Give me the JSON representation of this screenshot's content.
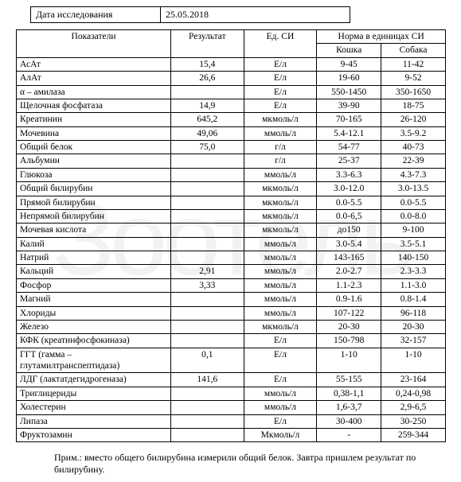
{
  "date_row": {
    "label": "Дата исследования",
    "value": "25.05.2018"
  },
  "headers": {
    "indicator": "Показатели",
    "result": "Результат",
    "unit": "Ед. СИ",
    "norm_group": "Норма в единицах СИ",
    "cat": "Кошка",
    "dog": "Собака"
  },
  "rows": [
    {
      "ind": "АсАт",
      "res": "15,4",
      "unit": "Е/л",
      "cat": "9-45",
      "dog": "11-42"
    },
    {
      "ind": "АлАт",
      "res": "26,6",
      "unit": "Е/л",
      "cat": "19-60",
      "dog": "9-52"
    },
    {
      "ind": "α – амилаза",
      "res": "",
      "unit": "Е/л",
      "cat": "550-1450",
      "dog": "350-1650"
    },
    {
      "ind": "Щелочная фосфатаза",
      "res": "14,9",
      "unit": "Е/л",
      "cat": "39-90",
      "dog": "18-75"
    },
    {
      "ind": "Креатинин",
      "res": "645,2",
      "unit": "мкмоль/л",
      "cat": "70-165",
      "dog": "26-120"
    },
    {
      "ind": "Мочевина",
      "res": "49,06",
      "unit": "ммоль/л",
      "cat": "5.4-12.1",
      "dog": "3.5-9.2"
    },
    {
      "ind": "Общий белок",
      "res": "75,0",
      "unit": "г/л",
      "cat": "54-77",
      "dog": "40-73"
    },
    {
      "ind": "Альбумин",
      "res": "",
      "unit": "г/л",
      "cat": "25-37",
      "dog": "22-39"
    },
    {
      "ind": "Глюкоза",
      "res": "",
      "unit": "ммоль/л",
      "cat": "3.3-6.3",
      "dog": "4.3-7.3"
    },
    {
      "ind": "Общий билирубин",
      "res": "",
      "unit": "мкмоль/л",
      "cat": "3.0-12.0",
      "dog": "3.0-13.5"
    },
    {
      "ind": "Прямой билирубин",
      "res": "",
      "unit": "мкмоль/л",
      "cat": "0.0-5.5",
      "dog": "0.0-5.5"
    },
    {
      "ind": "Непрямой билирубин",
      "res": "",
      "unit": "мкмоль/л",
      "cat": "0.0-6,5",
      "dog": "0.0-8.0"
    },
    {
      "ind": "Мочевая кислота",
      "res": "",
      "unit": "мкмоль/л",
      "cat": "до150",
      "dog": "9-100"
    },
    {
      "ind": "Калий",
      "res": "",
      "unit": "ммоль/л",
      "cat": "3.0-5.4",
      "dog": "3.5-5.1"
    },
    {
      "ind": "Натрий",
      "res": "",
      "unit": "ммоль/л",
      "cat": "143-165",
      "dog": "140-150"
    },
    {
      "ind": "Кальций",
      "res": "2,91",
      "unit": "ммоль/л",
      "cat": "2.0-2.7",
      "dog": "2.3-3.3"
    },
    {
      "ind": "Фосфор",
      "res": "3,33",
      "unit": "ммоль/л",
      "cat": "1.1-2.3",
      "dog": "1.1-3.0"
    },
    {
      "ind": "Магний",
      "res": "",
      "unit": "ммоль/л",
      "cat": "0.9-1.6",
      "dog": "0.8-1.4"
    },
    {
      "ind": "Хлориды",
      "res": "",
      "unit": "ммоль/л",
      "cat": "107-122",
      "dog": "96-118"
    },
    {
      "ind": "Железо",
      "res": "",
      "unit": "мкмоль/л",
      "cat": "20-30",
      "dog": "20-30"
    },
    {
      "ind": "КФК (креатинфосфокиназа)",
      "res": "",
      "unit": "Е/л",
      "cat": "150-798",
      "dog": "32-157"
    },
    {
      "ind": "ГГТ (гамма – глутамилтранспептидаза)",
      "res": "0,1",
      "unit": "Е/л",
      "cat": "1-10",
      "dog": "1-10"
    },
    {
      "ind": "ЛДГ (лактатдегидрогеназа)",
      "res": "141,6",
      "unit": "Е/л",
      "cat": "55-155",
      "dog": "23-164"
    },
    {
      "ind": "Триглицериды",
      "res": "",
      "unit": "ммоль/л",
      "cat": "0,38-1,1",
      "dog": "0,24-0,98"
    },
    {
      "ind": "Холестерин",
      "res": "",
      "unit": "ммоль/л",
      "cat": "1,6-3,7",
      "dog": "2,9-6,5"
    },
    {
      "ind": "Липаза",
      "res": "",
      "unit": "Е/л",
      "cat": "30-400",
      "dog": "30-250"
    },
    {
      "ind": "Фруктозамин",
      "res": "",
      "unit": "Мкмоль/л",
      "cat": "-",
      "dog": "259-344"
    }
  ],
  "note": "Прим.:  вместо общего билирубина измерили общий белок. Завтра пришлем результат по билирубину.",
  "watermark": "Зоотель"
}
